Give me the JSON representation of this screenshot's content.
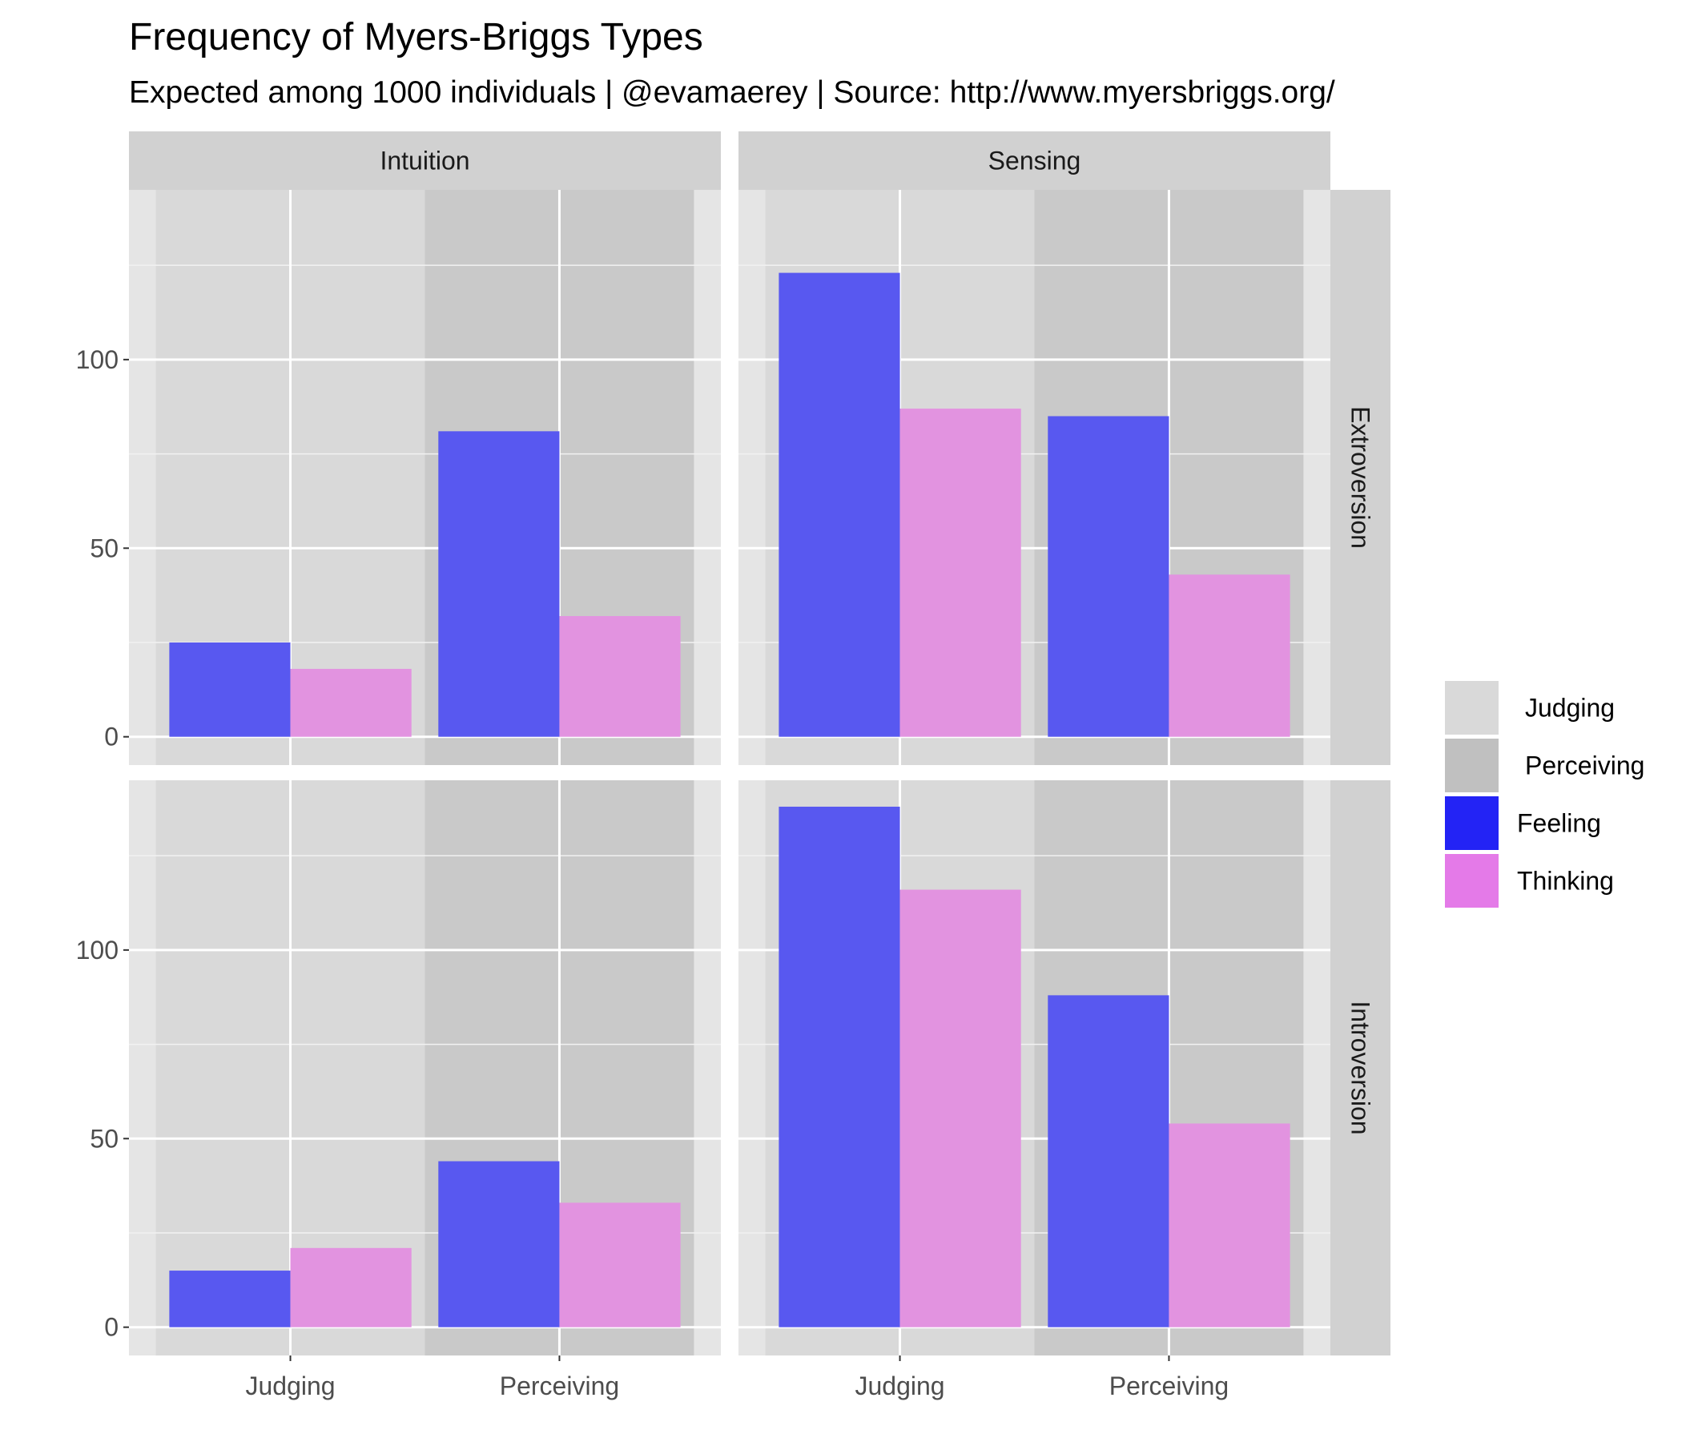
{
  "chart_data": {
    "type": "bar",
    "title": "Frequency of Myers-Briggs Types",
    "subtitle": "Expected among 1000 individuals | @evamaerey | Source: http://www.myersbriggs.org/",
    "xlabel": "",
    "ylabel": "",
    "categories": [
      "Judging",
      "Perceiving"
    ],
    "facet_columns": [
      "Intuition",
      "Sensing"
    ],
    "facet_rows": [
      "Extroversion",
      "Introversion"
    ],
    "y_ticks": [
      0,
      50,
      100
    ],
    "ylim": [
      0,
      145
    ],
    "grid": true,
    "legend_position": "right",
    "legend": [
      {
        "label": "Judging",
        "color": "#d9d9d9",
        "kind": "background"
      },
      {
        "label": "Perceiving",
        "color": "#c0c0c0",
        "kind": "background"
      },
      {
        "label": "Feeling",
        "color": "#2323f5",
        "kind": "bar"
      },
      {
        "label": "Thinking",
        "color": "#e47ae8",
        "kind": "bar"
      }
    ],
    "background_colors": {
      "Judging": "#d9d9d9",
      "Perceiving": "#c9c9c9"
    },
    "series_colors": {
      "Feeling": "#5858f0",
      "Thinking": "#e293e0"
    },
    "panels": [
      {
        "row": "Extroversion",
        "col": "Intuition",
        "series": [
          {
            "name": "Feeling",
            "values": [
              25,
              81
            ]
          },
          {
            "name": "Thinking",
            "values": [
              18,
              32
            ]
          }
        ]
      },
      {
        "row": "Extroversion",
        "col": "Sensing",
        "series": [
          {
            "name": "Feeling",
            "values": [
              123,
              85
            ]
          },
          {
            "name": "Thinking",
            "values": [
              87,
              43
            ]
          }
        ]
      },
      {
        "row": "Introversion",
        "col": "Intuition",
        "series": [
          {
            "name": "Feeling",
            "values": [
              15,
              44
            ]
          },
          {
            "name": "Thinking",
            "values": [
              21,
              33
            ]
          }
        ]
      },
      {
        "row": "Introversion",
        "col": "Sensing",
        "series": [
          {
            "name": "Feeling",
            "values": [
              138,
              88
            ]
          },
          {
            "name": "Thinking",
            "values": [
              116,
              54
            ]
          }
        ]
      }
    ]
  }
}
